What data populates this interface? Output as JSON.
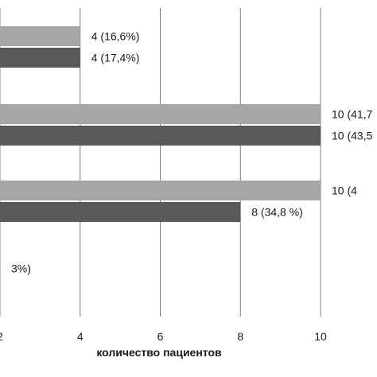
{
  "chart_data": {
    "type": "bar",
    "orientation": "horizontal",
    "xlabel": "количество пациентов",
    "ylabel": "",
    "title": "",
    "xlim": [
      2,
      10
    ],
    "x_ticks": [
      "2",
      "4",
      "6",
      "8",
      "10"
    ],
    "grid": true,
    "groups": [
      {
        "bars": [
          {
            "value": 4,
            "label": "4 (16,6%)",
            "color": "#a6a6a6"
          },
          {
            "value": 4,
            "label": "4 (17,4%)",
            "color": "#595959"
          }
        ]
      },
      {
        "bars": [
          {
            "value": 10,
            "label": "10 (41,7",
            "color": "#a6a6a6"
          },
          {
            "value": 10,
            "label": "10 (43,5",
            "color": "#595959"
          }
        ]
      },
      {
        "bars": [
          {
            "value": 10,
            "label": "10 (4",
            "color": "#a6a6a6"
          },
          {
            "value": 8,
            "label": "8 (34,8 %)",
            "color": "#595959"
          }
        ]
      },
      {
        "bars": [
          {
            "value": null,
            "label": "3%)",
            "color": "#595959"
          }
        ]
      }
    ]
  }
}
